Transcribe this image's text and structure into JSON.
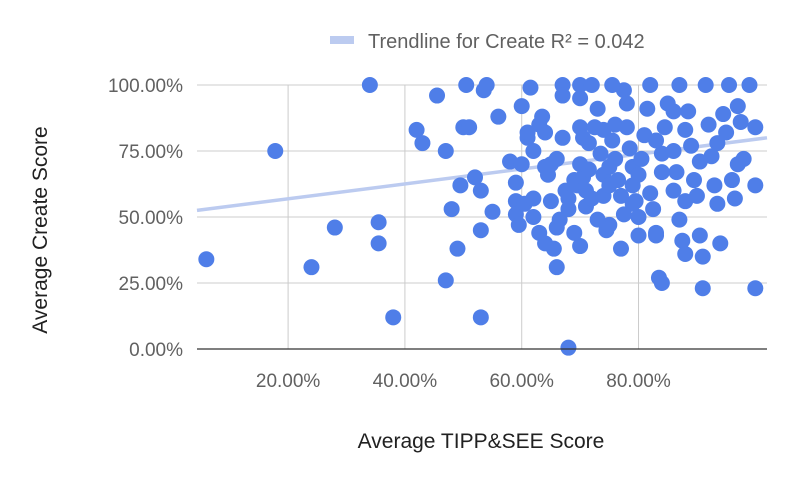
{
  "chart_data": {
    "type": "scatter",
    "title": "",
    "xlabel": "Average TIPP&SEE Score",
    "ylabel": "Average Create Score",
    "xlim": [
      0.044,
      1.02
    ],
    "ylim": [
      0,
      1.0
    ],
    "x_ticks": [
      0.2,
      0.4,
      0.6,
      0.8
    ],
    "x_tick_labels": [
      "20.00%",
      "40.00%",
      "60.00%",
      "80.00%"
    ],
    "y_ticks": [
      0,
      0.25,
      0.5,
      0.75,
      1.0
    ],
    "y_tick_labels": [
      "0.00%",
      "25.00%",
      "50.00%",
      "75.00%",
      "100.00%"
    ],
    "grid": true,
    "legend_position": "top-center",
    "legend": [
      "Trendline for Create R² = 0.042"
    ],
    "series": [
      {
        "marker_color": "#4f7ee8",
        "points": [
          [
            0.06,
            0.34
          ],
          [
            0.178,
            0.75
          ],
          [
            0.24,
            0.31
          ],
          [
            0.28,
            0.46
          ],
          [
            0.34,
            1.0
          ],
          [
            0.355,
            0.48
          ],
          [
            0.355,
            0.4
          ],
          [
            0.38,
            0.12
          ],
          [
            0.42,
            0.83
          ],
          [
            0.43,
            0.78
          ],
          [
            0.455,
            0.96
          ],
          [
            0.47,
            0.75
          ],
          [
            0.48,
            0.53
          ],
          [
            0.47,
            0.26
          ],
          [
            0.49,
            0.38
          ],
          [
            0.495,
            0.62
          ],
          [
            0.5,
            0.84
          ],
          [
            0.51,
            0.84
          ],
          [
            0.505,
            1.0
          ],
          [
            0.52,
            0.65
          ],
          [
            0.53,
            0.6
          ],
          [
            0.53,
            0.45
          ],
          [
            0.53,
            0.12
          ],
          [
            0.535,
            0.98
          ],
          [
            0.54,
            1.0
          ],
          [
            0.55,
            0.52
          ],
          [
            0.58,
            0.71
          ],
          [
            0.59,
            0.63
          ],
          [
            0.59,
            0.56
          ],
          [
            0.59,
            0.51
          ],
          [
            0.595,
            0.47
          ],
          [
            0.6,
            0.92
          ],
          [
            0.6,
            0.7
          ],
          [
            0.605,
            0.55
          ],
          [
            0.61,
            0.8
          ],
          [
            0.61,
            0.82
          ],
          [
            0.615,
            0.99
          ],
          [
            0.62,
            0.75
          ],
          [
            0.62,
            0.5
          ],
          [
            0.63,
            0.85
          ],
          [
            0.635,
            0.88
          ],
          [
            0.64,
            0.82
          ],
          [
            0.64,
            0.69
          ],
          [
            0.645,
            0.66
          ],
          [
            0.65,
            0.7
          ],
          [
            0.65,
            0.56
          ],
          [
            0.63,
            0.44
          ],
          [
            0.64,
            0.4
          ],
          [
            0.655,
            0.38
          ],
          [
            0.66,
            0.31
          ],
          [
            0.665,
            0.49
          ],
          [
            0.67,
            1.0
          ],
          [
            0.67,
            0.96
          ],
          [
            0.67,
            0.8
          ],
          [
            0.675,
            0.6
          ],
          [
            0.68,
            0.57
          ],
          [
            0.69,
            0.64
          ],
          [
            0.695,
            0.62
          ],
          [
            0.7,
            1.0
          ],
          [
            0.7,
            0.95
          ],
          [
            0.7,
            0.84
          ],
          [
            0.705,
            0.8
          ],
          [
            0.7,
            0.7
          ],
          [
            0.705,
            0.65
          ],
          [
            0.71,
            0.6
          ],
          [
            0.71,
            0.54
          ],
          [
            0.7,
            0.39
          ],
          [
            0.715,
            0.68
          ],
          [
            0.72,
            0.57
          ],
          [
            0.72,
            1.0
          ],
          [
            0.725,
            0.84
          ],
          [
            0.73,
            0.91
          ],
          [
            0.735,
            0.74
          ],
          [
            0.74,
            0.66
          ],
          [
            0.74,
            0.58
          ],
          [
            0.745,
            0.45
          ],
          [
            0.75,
            0.47
          ],
          [
            0.75,
            0.62
          ],
          [
            0.755,
            1.0
          ],
          [
            0.76,
            0.85
          ],
          [
            0.76,
            0.72
          ],
          [
            0.765,
            0.64
          ],
          [
            0.77,
            0.58
          ],
          [
            0.775,
            0.51
          ],
          [
            0.77,
            0.38
          ],
          [
            0.775,
            0.98
          ],
          [
            0.78,
            0.93
          ],
          [
            0.78,
            0.84
          ],
          [
            0.785,
            0.76
          ],
          [
            0.79,
            0.69
          ],
          [
            0.79,
            0.62
          ],
          [
            0.795,
            0.56
          ],
          [
            0.8,
            0.5
          ],
          [
            0.8,
            0.66
          ],
          [
            0.805,
            0.72
          ],
          [
            0.81,
            0.81
          ],
          [
            0.815,
            0.91
          ],
          [
            0.82,
            1.0
          ],
          [
            0.82,
            0.59
          ],
          [
            0.825,
            0.53
          ],
          [
            0.83,
            0.44
          ],
          [
            0.83,
            0.43
          ],
          [
            0.835,
            0.27
          ],
          [
            0.84,
            0.25
          ],
          [
            0.84,
            0.74
          ],
          [
            0.845,
            0.84
          ],
          [
            0.85,
            0.93
          ],
          [
            0.86,
            0.75
          ],
          [
            0.865,
            0.67
          ],
          [
            0.87,
            1.0
          ],
          [
            0.87,
            0.49
          ],
          [
            0.875,
            0.41
          ],
          [
            0.88,
            0.36
          ],
          [
            0.88,
            0.83
          ],
          [
            0.885,
            0.9
          ],
          [
            0.89,
            0.77
          ],
          [
            0.895,
            0.64
          ],
          [
            0.9,
            0.58
          ],
          [
            0.905,
            0.43
          ],
          [
            0.91,
            0.23
          ],
          [
            0.91,
            0.35
          ],
          [
            0.915,
            1.0
          ],
          [
            0.92,
            0.85
          ],
          [
            0.925,
            0.73
          ],
          [
            0.93,
            0.62
          ],
          [
            0.935,
            0.55
          ],
          [
            0.94,
            0.4
          ],
          [
            0.945,
            0.89
          ],
          [
            0.95,
            0.82
          ],
          [
            0.955,
            1.0
          ],
          [
            0.96,
            0.64
          ],
          [
            0.965,
            0.57
          ],
          [
            0.97,
            0.92
          ],
          [
            0.975,
            0.86
          ],
          [
            0.98,
            0.72
          ],
          [
            0.99,
            1.0
          ],
          [
            1.0,
            0.84
          ],
          [
            1.0,
            0.62
          ],
          [
            1.0,
            0.23
          ],
          [
            0.56,
            0.88
          ],
          [
            0.74,
            0.83
          ],
          [
            0.68,
            0.53
          ],
          [
            0.86,
            0.6
          ],
          [
            0.66,
            0.46
          ],
          [
            0.715,
            0.78
          ],
          [
            0.755,
            0.79
          ],
          [
            0.84,
            0.67
          ],
          [
            0.905,
            0.71
          ],
          [
            0.79,
            0.55
          ],
          [
            0.66,
            0.72
          ],
          [
            0.62,
            0.57
          ],
          [
            0.73,
            0.49
          ],
          [
            0.83,
            0.79
          ],
          [
            0.935,
            0.78
          ],
          [
            0.97,
            0.7
          ],
          [
            0.88,
            0.56
          ],
          [
            0.8,
            0.43
          ],
          [
            0.69,
            0.44
          ],
          [
            0.75,
            0.69
          ],
          [
            0.86,
            0.9
          ],
          [
            0.68,
            0.005
          ]
        ]
      }
    ],
    "trendline": {
      "name": "Trendline for Create R² = 0.042",
      "color": "#bccbf0",
      "x0": 0.044,
      "y0": 0.525,
      "x1": 1.02,
      "y1": 0.8
    }
  }
}
